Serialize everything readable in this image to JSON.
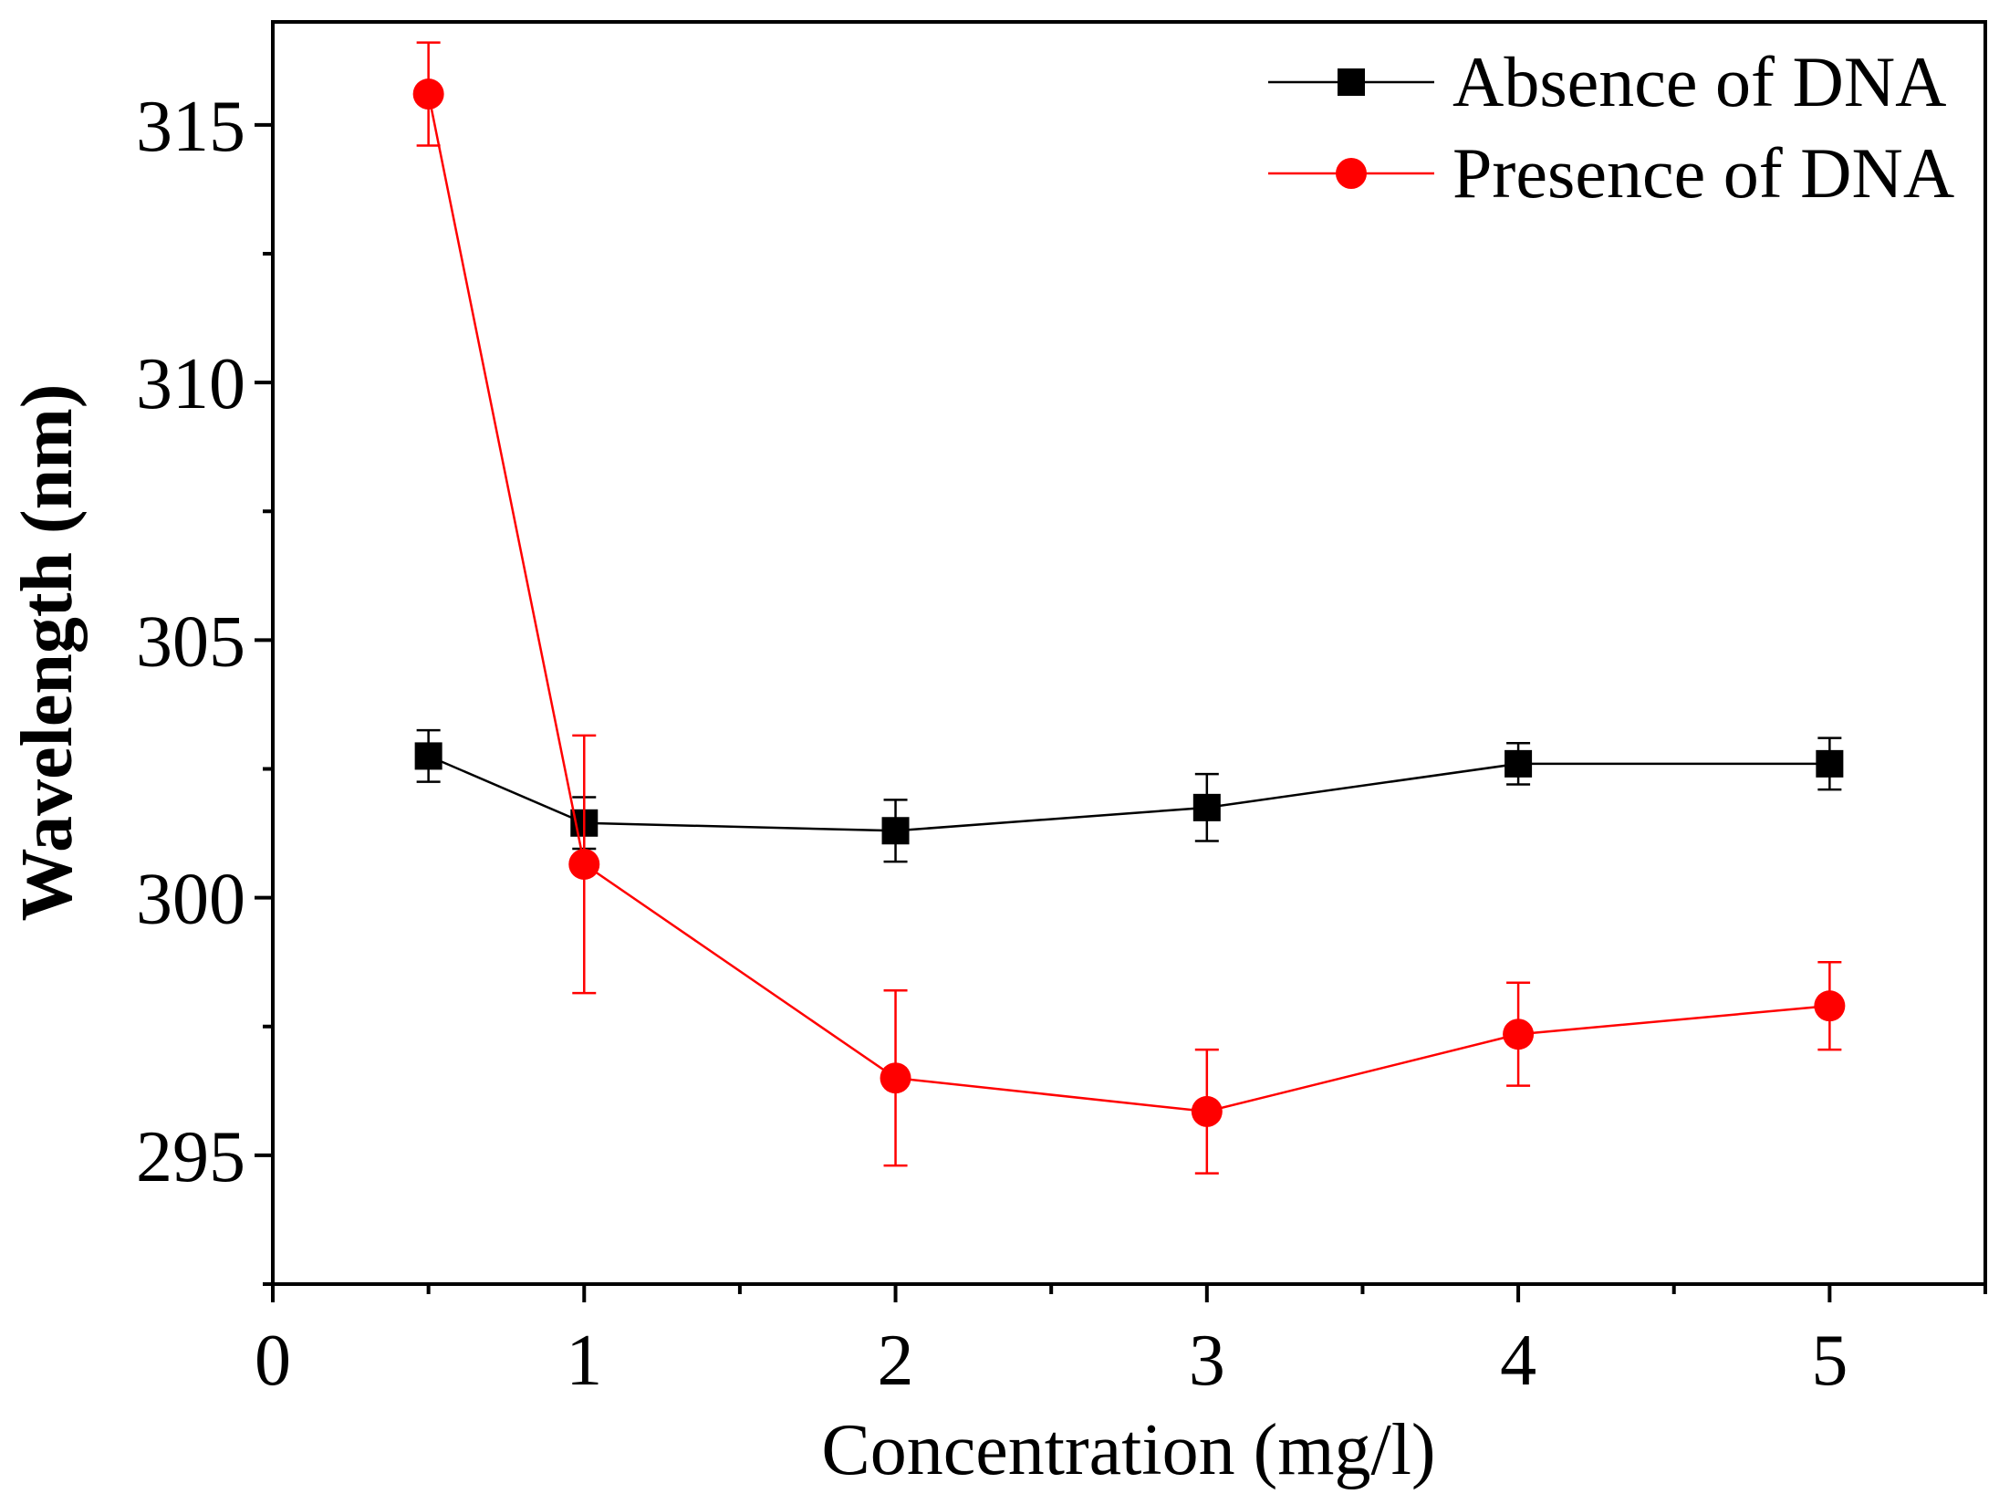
{
  "chart_data": {
    "type": "line",
    "title": "",
    "xlabel": "Concentration (mg/l)",
    "ylabel": "Wavelength (nm)",
    "xlim": [
      0,
      5.5
    ],
    "ylim": [
      292.5,
      317
    ],
    "x_ticks": [
      "0",
      "1",
      "2",
      "3",
      "4",
      "5"
    ],
    "y_ticks": [
      "295",
      "300",
      "305",
      "310",
      "315"
    ],
    "grid": false,
    "legend_position": "top-right",
    "series": [
      {
        "name": "Absence of DNA",
        "color": "#000000",
        "marker": "square",
        "x": [
          0.5,
          1,
          2,
          3,
          4,
          5
        ],
        "y": [
          302.75,
          301.45,
          301.3,
          301.75,
          302.6,
          302.6
        ],
        "error": [
          0.5,
          0.5,
          0.6,
          0.65,
          0.4,
          0.5
        ]
      },
      {
        "name": "Presence of DNA",
        "color": "#ff0000",
        "marker": "circle",
        "x": [
          0.5,
          1,
          2,
          3,
          4,
          5
        ],
        "y": [
          315.6,
          300.65,
          296.5,
          295.85,
          297.35,
          297.9
        ],
        "error": [
          1.0,
          2.5,
          1.7,
          1.2,
          1.0,
          0.85
        ]
      }
    ]
  }
}
